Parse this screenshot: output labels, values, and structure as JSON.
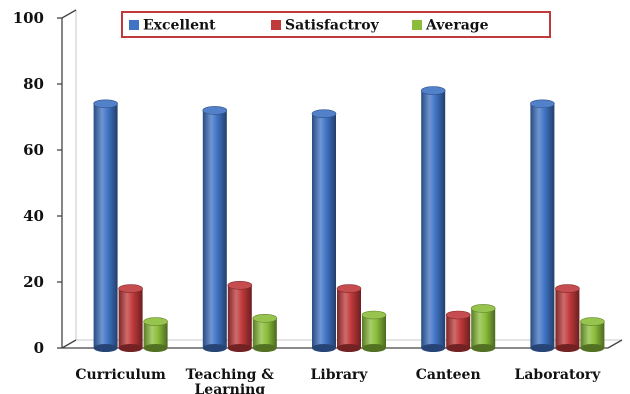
{
  "chart_data": {
    "type": "bar",
    "style": "3d-cylinder",
    "categories": [
      "Curriculum",
      "Teaching & Learning",
      "Library",
      "Canteen",
      "Laboratory"
    ],
    "series": [
      {
        "name": "Excellent",
        "values": [
          74,
          72,
          71,
          78,
          74
        ],
        "color": "#3f73c4"
      },
      {
        "name": "Satisfactroy",
        "values": [
          18,
          19,
          18,
          10,
          18
        ],
        "color": "#c0393b"
      },
      {
        "name": "Average",
        "values": [
          8,
          9,
          10,
          12,
          8
        ],
        "color": "#8bbd3a"
      }
    ],
    "ylim": [
      0,
      100
    ],
    "yticks": [
      "0",
      "20",
      "40",
      "60",
      "80",
      "100"
    ],
    "legend": {
      "position": "top",
      "border_color": "#c0393b"
    },
    "grid": false
  }
}
